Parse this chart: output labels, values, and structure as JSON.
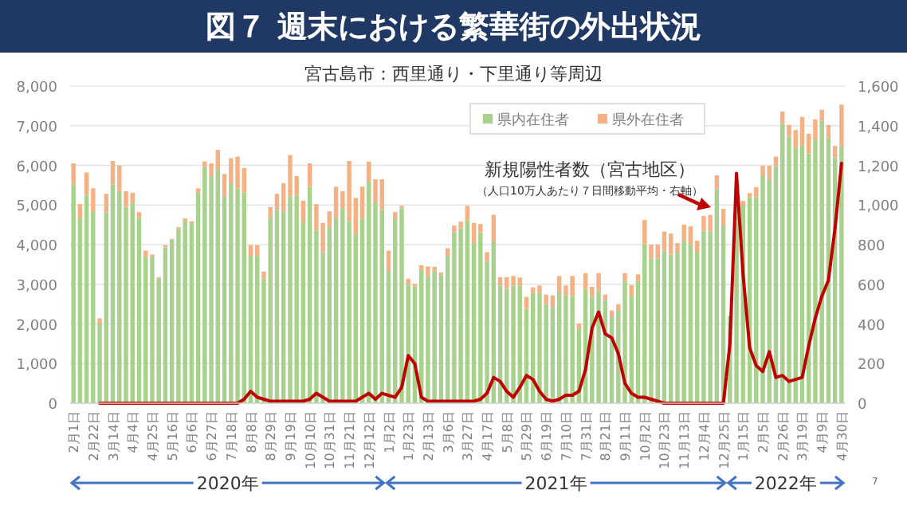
{
  "chart_data": {
    "type": "bar",
    "title": "図７ 週末における繁華街の外出状況",
    "subtitle": "宮古島市：西里通り・下里通り等周辺",
    "categories": [
      "2月1日",
      null,
      null,
      "2月22日",
      null,
      null,
      "3月14日",
      null,
      null,
      "4月4日",
      null,
      null,
      "4月25日",
      null,
      null,
      "5月16日",
      null,
      null,
      "6月6日",
      null,
      null,
      "6月27日",
      null,
      null,
      "7月18日",
      null,
      null,
      "8月8日",
      null,
      null,
      "8月29日",
      null,
      null,
      "9月19日",
      null,
      null,
      "10月10日",
      null,
      null,
      "10月31日",
      null,
      null,
      "11月21日",
      null,
      null,
      "12月12日",
      null,
      null,
      "1月2日",
      null,
      null,
      "1月23日",
      null,
      null,
      "2月13日",
      null,
      null,
      "3月6日",
      null,
      null,
      "3月27日",
      null,
      null,
      "4月17日",
      null,
      null,
      "5月8日",
      null,
      null,
      "5月29日",
      null,
      null,
      "6月19日",
      null,
      null,
      "7月10日",
      null,
      null,
      "7月31日",
      null,
      null,
      "8月21日",
      null,
      null,
      "9月11日",
      null,
      null,
      "10月2日",
      null,
      null,
      "10月23日",
      null,
      null,
      "11月13日",
      null,
      null,
      "12月4日",
      null,
      null,
      "12月25日",
      null,
      null,
      "1月15日",
      null,
      null,
      "2月5日",
      null,
      null,
      "2月26日",
      null,
      null,
      "3月19日",
      null,
      null,
      "4月9日",
      null,
      null,
      "4月30日"
    ],
    "stacked": true,
    "series": [
      {
        "name": "県内在住者",
        "color": "#a9d18e",
        "values": [
          5510,
          4660,
          5260,
          4840,
          2010,
          4820,
          5520,
          5350,
          4950,
          5060,
          4680,
          3680,
          3680,
          3140,
          3930,
          4130,
          4390,
          4600,
          4540,
          5310,
          5980,
          5730,
          5890,
          5220,
          5550,
          5420,
          5320,
          3720,
          3720,
          3140,
          4680,
          4880,
          4840,
          5220,
          5240,
          4580,
          5460,
          4350,
          3810,
          4440,
          4660,
          4920,
          4590,
          4280,
          4660,
          5590,
          5060,
          4880,
          3340,
          4660,
          4920,
          3010,
          2940,
          3370,
          3210,
          3340,
          3240,
          3720,
          4310,
          4410,
          4620,
          4040,
          4310,
          3590,
          4080,
          2970,
          2880,
          2970,
          2970,
          2380,
          2780,
          2780,
          2500,
          2430,
          2810,
          2720,
          2700,
          1870,
          2880,
          2680,
          2840,
          2600,
          2170,
          2330,
          3080,
          2710,
          3080,
          4010,
          3650,
          3650,
          3850,
          3750,
          3800,
          4080,
          4010,
          3800,
          4350,
          4330,
          5400,
          4480,
          2200,
          5100,
          5000,
          5200,
          5200,
          5750,
          5650,
          5980,
          7050,
          6720,
          6450,
          6500,
          6300,
          6650,
          7120,
          6700,
          6200,
          6490
        ]
      },
      {
        "name": "県外在住者",
        "color": "#f4b183",
        "values": [
          540,
          360,
          560,
          580,
          130,
          460,
          590,
          650,
          400,
          250,
          140,
          170,
          70,
          40,
          60,
          20,
          50,
          60,
          50,
          110,
          120,
          320,
          500,
          560,
          630,
          800,
          610,
          270,
          270,
          180,
          270,
          400,
          710,
          1040,
          490,
          530,
          590,
          670,
          740,
          400,
          800,
          430,
          1520,
          900,
          800,
          500,
          590,
          770,
          510,
          160,
          60,
          130,
          70,
          110,
          240,
          100,
          60,
          190,
          170,
          170,
          360,
          510,
          210,
          220,
          670,
          210,
          300,
          240,
          200,
          300,
          140,
          190,
          240,
          290,
          400,
          250,
          510,
          140,
          400,
          260,
          440,
          140,
          170,
          170,
          200,
          270,
          170,
          610,
          350,
          350,
          480,
          530,
          240,
          420,
          450,
          300,
          370,
          420,
          350,
          420,
          null,
          null,
          100,
          100,
          250,
          240,
          340,
          240,
          310,
          300,
          440,
          720,
          500,
          510,
          280,
          320,
          290,
          1040
        ]
      },
      {
        "name": "新規陽性者数（宮古地区）",
        "type": "line",
        "axis": "y2",
        "color": "#c00000",
        "values": [
          null,
          null,
          null,
          null,
          0,
          0,
          0,
          0,
          0,
          0,
          0,
          0,
          0,
          0,
          0,
          0,
          0,
          0,
          0,
          0,
          0,
          0,
          0,
          0,
          0,
          0,
          20,
          60,
          30,
          20,
          10,
          10,
          10,
          10,
          10,
          10,
          20,
          50,
          30,
          10,
          10,
          10,
          10,
          10,
          30,
          50,
          20,
          50,
          40,
          30,
          80,
          240,
          200,
          30,
          10,
          10,
          10,
          10,
          10,
          10,
          10,
          10,
          20,
          50,
          130,
          110,
          60,
          30,
          80,
          140,
          120,
          60,
          20,
          10,
          20,
          40,
          40,
          60,
          170,
          380,
          460,
          350,
          330,
          250,
          100,
          50,
          30,
          30,
          20,
          10,
          0,
          0,
          0,
          0,
          0,
          0,
          0,
          0,
          0,
          0,
          300,
          1160,
          650,
          280,
          190,
          160,
          260,
          130,
          140,
          110,
          120,
          130,
          290,
          430,
          540,
          620,
          880,
          1210
        ]
      }
    ],
    "ylim": [
      0,
      8000
    ],
    "yticks": [
      0,
      {
        "value": 1000,
        "label": "1,000"
      },
      {
        "value": 2000,
        "label": "2,000"
      },
      {
        "value": 3000,
        "label": "3,000"
      },
      {
        "value": 4000,
        "label": "4,000"
      },
      {
        "value": 5000,
        "label": "5,000"
      },
      {
        "value": 6000,
        "label": "6,000"
      },
      {
        "value": 7000,
        "label": "7,000"
      },
      {
        "value": 8000,
        "label": "8,000"
      }
    ],
    "y2lim": [
      0,
      1600
    ],
    "y2ticks": [
      0,
      200,
      400,
      600,
      800,
      {
        "value": 1000,
        "label": "1,000"
      },
      {
        "value": 1200,
        "label": "1,200"
      },
      {
        "value": 1400,
        "label": "1,400"
      },
      {
        "value": 1600,
        "label": "1,600"
      }
    ],
    "grid": "y",
    "legend": "top right",
    "marker": "none",
    "line_style": "solid",
    "annotations": [
      "（人口10万人あたり７日間移動平均・右軸）",
      "2020年",
      "2021年",
      "2022年",
      "7"
    ]
  }
}
